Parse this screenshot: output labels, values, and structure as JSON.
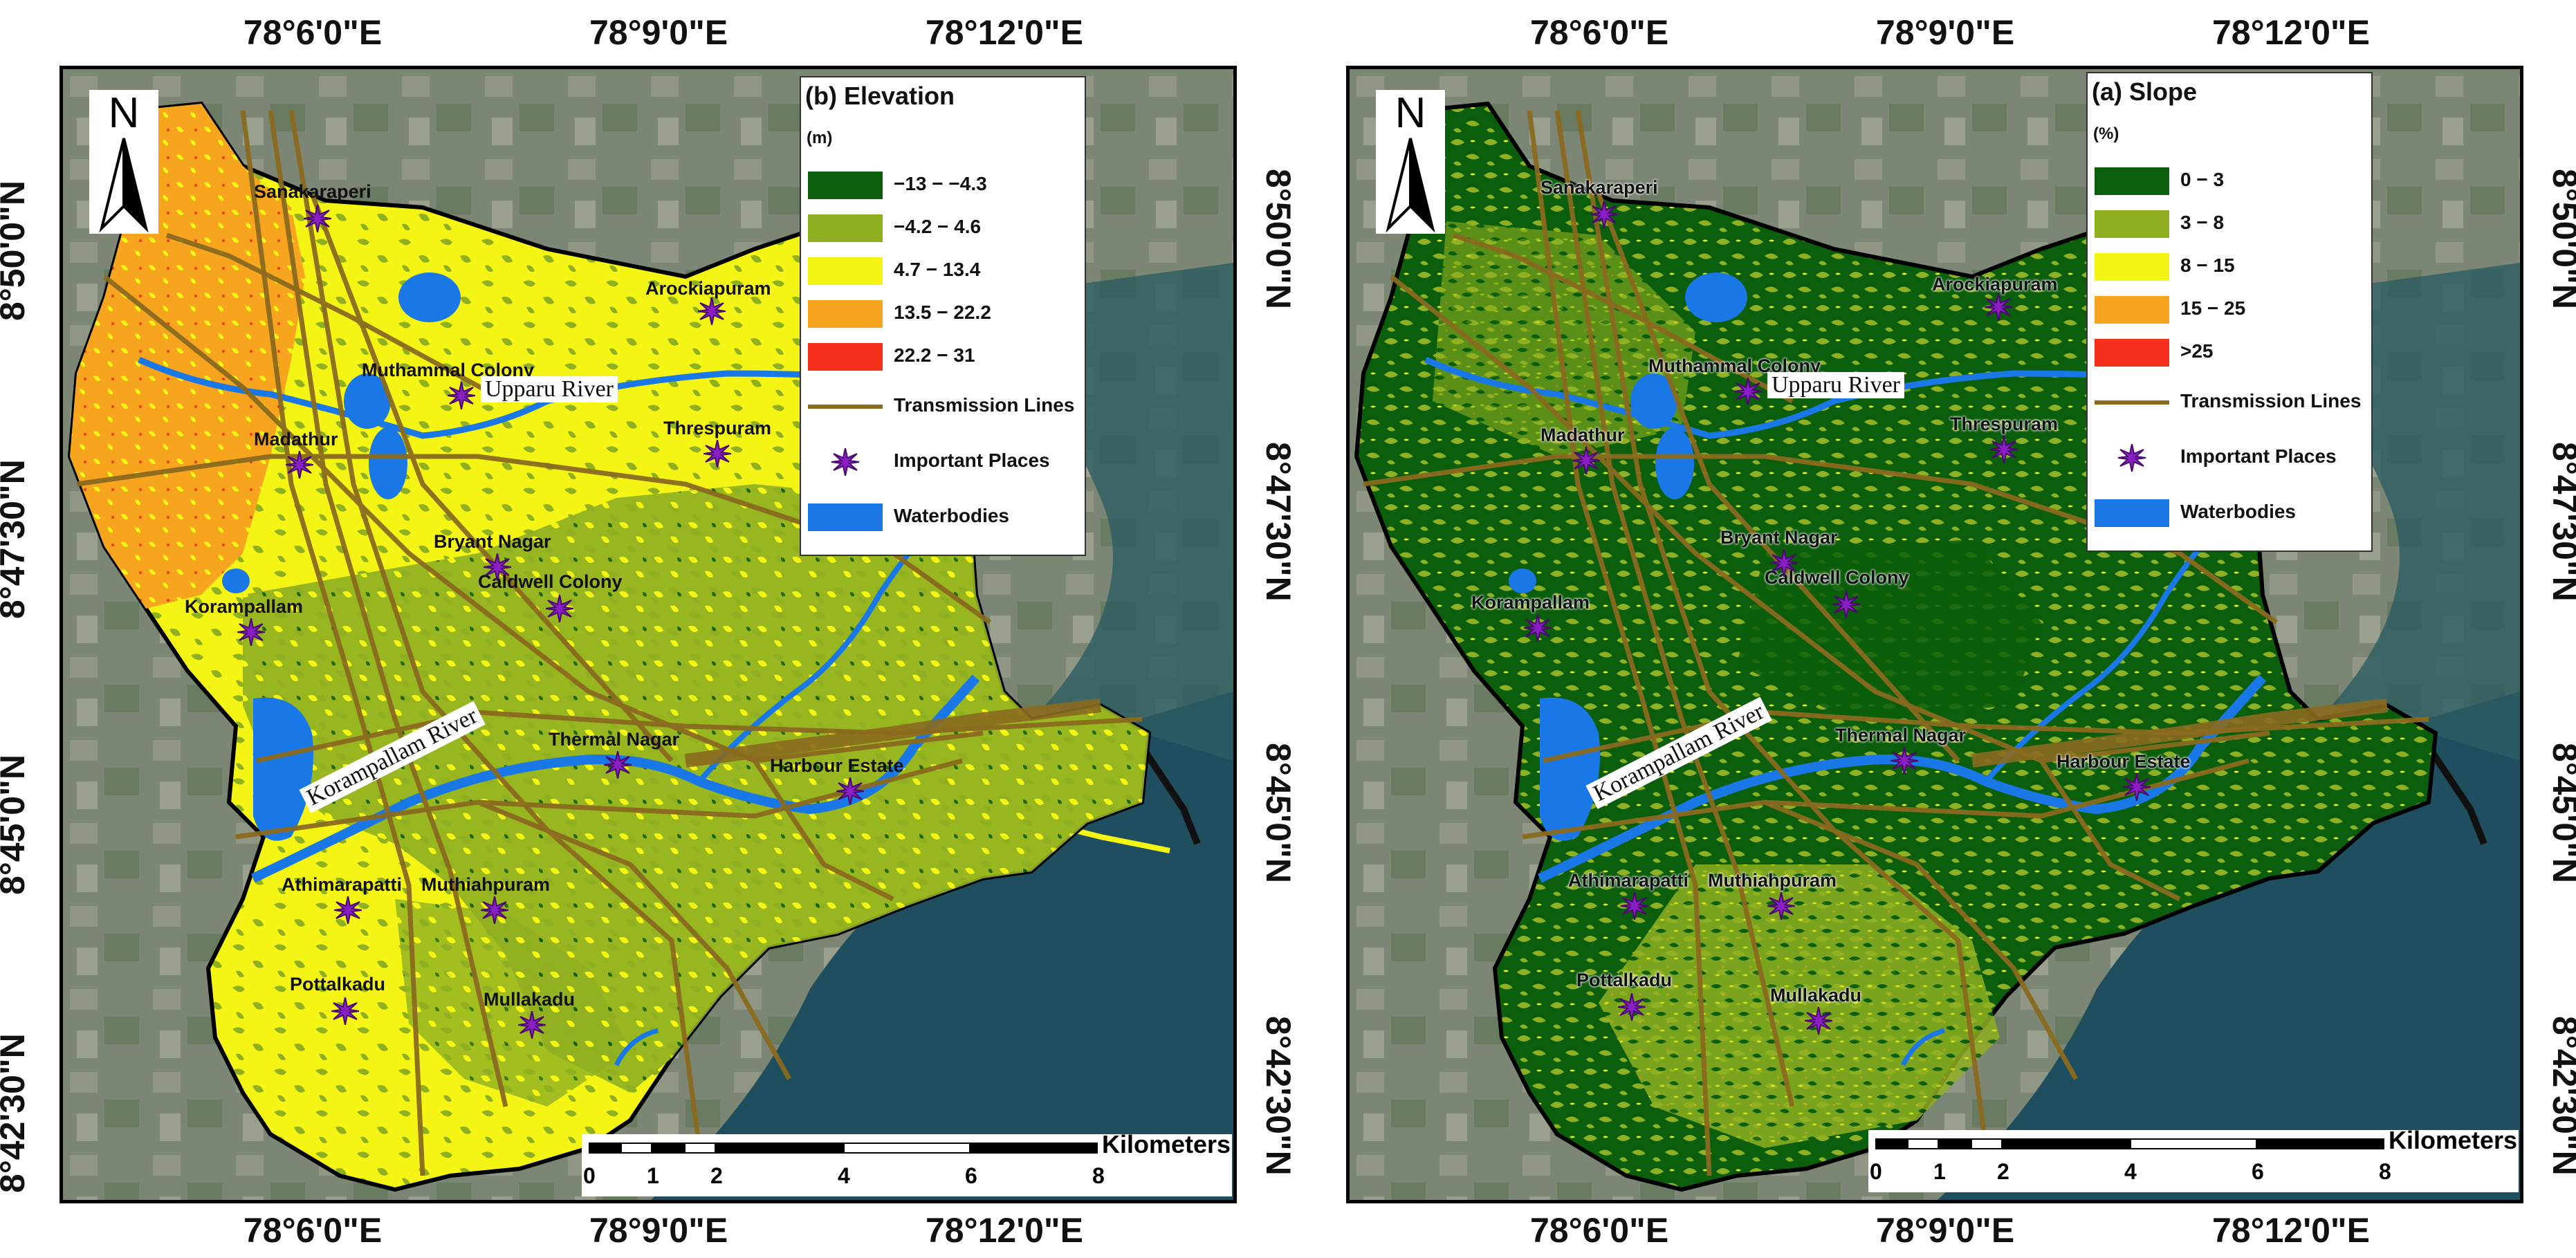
{
  "coords": {
    "top_left": [
      "78°6'0\"E",
      "78°9'0\"E",
      "78°12'0\"E"
    ],
    "top_right": [
      "78°6'0\"E",
      "78°9'0\"E",
      "78°12'0\"E"
    ],
    "bottom_left": [
      "78°6'0\"E",
      "78°9'0\"E",
      "78°12'0\"E"
    ],
    "bottom_right": [
      "78°6'0\"E",
      "78°9'0\"E",
      "78°12'0\"E"
    ],
    "left_lat": [
      "8°50'0\"N",
      "8°47'30\"N",
      "8°45'0\"N",
      "8°42'30\"N"
    ],
    "mid_lat": [
      "8°50'0\"N",
      "8°47'30\"N",
      "8°45'0\"N",
      "8°42'30\"N"
    ],
    "right_lat": [
      "8°50'0\"N",
      "8°47'30\"N",
      "8°45'0\"N",
      "8°42'30\"N"
    ]
  },
  "north_label": "N",
  "left_panel": {
    "legend_title": "(b) Elevation",
    "legend_unit": "(m)",
    "classes": [
      {
        "label": "−13 − −4.3",
        "color": "#0b5e0b"
      },
      {
        "label": "−4.2 − 4.6",
        "color": "#8fb021"
      },
      {
        "label": "4.7 − 13.4",
        "color": "#f5f515"
      },
      {
        "label": "13.5 − 22.2",
        "color": "#f7a41e"
      },
      {
        "label": "22.2 − 31",
        "color": "#f5301a"
      }
    ]
  },
  "right_panel": {
    "legend_title": "(a) Slope",
    "legend_unit": "(%)",
    "classes": [
      {
        "label": "0 − 3",
        "color": "#0b5e0b"
      },
      {
        "label": "3 − 8",
        "color": "#8fb021"
      },
      {
        "label": "8 − 15",
        "color": "#f5f515"
      },
      {
        "label": "15 − 25",
        "color": "#f7a41e"
      },
      {
        "label": ">25",
        "color": "#f5301a"
      }
    ]
  },
  "common_legend": {
    "transmission": "Transmission Lines",
    "places": "Important Places",
    "waterbodies": "Waterbodies",
    "transmission_color": "#8a6a1f",
    "place_color": "#8a1fc6",
    "water_color": "#1a78e6"
  },
  "scale": {
    "unit": "Kilometers",
    "ticks": [
      "0",
      "1",
      "2",
      "4",
      "6",
      "8"
    ]
  },
  "rivers": {
    "upparu": "Upparu River",
    "korampallam": "Korampallam River"
  },
  "places": {
    "sanakaraperi": "Sanakaraperi",
    "arockiapuram": "Arockiapuram",
    "muthammal": "Muthammal Colony",
    "madathur": "Madathur",
    "threspuram": "Threspuram",
    "bryant": "Bryant Nagar",
    "caldwell": "Caldwell Colony",
    "korampallam": "Korampallam",
    "thermal": "Thermal Nagar",
    "harbour": "Harbour Estate",
    "athimarapatti": "Athimarapatti",
    "muthiahpuram": "Muthiahpuram",
    "pottalkadu": "Pottalkadu",
    "mullakadu": "Mullakadu"
  }
}
